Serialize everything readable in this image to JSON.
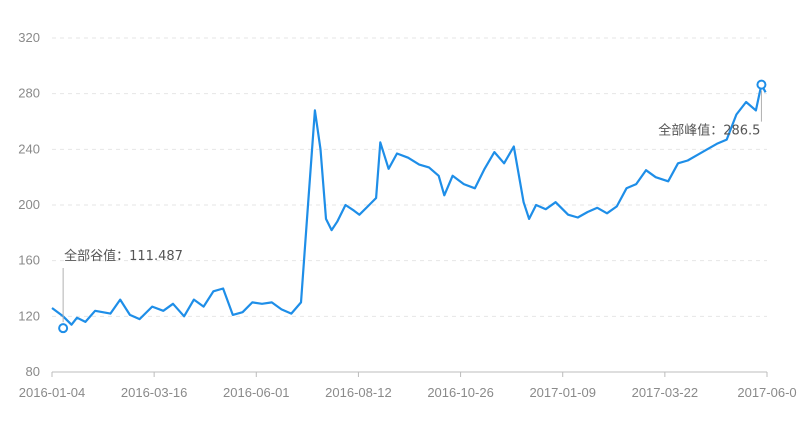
{
  "chart_data": {
    "type": "line",
    "title": "",
    "xlabel": "",
    "ylabel": "",
    "ylim": [
      80,
      320
    ],
    "yticks": [
      80,
      120,
      160,
      200,
      240,
      280,
      320
    ],
    "xticks": [
      "2016-01-04",
      "2016-03-16",
      "2016-06-01",
      "2016-08-12",
      "2016-10-26",
      "2017-01-09",
      "2017-03-22",
      "2017-06-0"
    ],
    "grid": "horizontal-dashed",
    "series": [
      {
        "name": "",
        "color": "#1e8ee8",
        "points": [
          [
            "2016-01-04",
            126
          ],
          [
            "2016-01-12",
            120
          ],
          [
            "2016-01-18",
            114
          ],
          [
            "2016-01-22",
            119
          ],
          [
            "2016-01-28",
            116
          ],
          [
            "2016-02-04",
            124
          ],
          [
            "2016-02-15",
            122
          ],
          [
            "2016-02-22",
            132
          ],
          [
            "2016-02-29",
            121
          ],
          [
            "2016-03-07",
            118
          ],
          [
            "2016-03-16",
            127
          ],
          [
            "2016-03-24",
            124
          ],
          [
            "2016-03-31",
            129
          ],
          [
            "2016-04-08",
            120
          ],
          [
            "2016-04-15",
            132
          ],
          [
            "2016-04-22",
            127
          ],
          [
            "2016-04-29",
            138
          ],
          [
            "2016-05-06",
            140
          ],
          [
            "2016-05-13",
            121
          ],
          [
            "2016-05-20",
            123
          ],
          [
            "2016-05-27",
            130
          ],
          [
            "2016-06-03",
            129
          ],
          [
            "2016-06-10",
            130
          ],
          [
            "2016-06-17",
            125
          ],
          [
            "2016-06-24",
            122
          ],
          [
            "2016-07-01",
            130
          ],
          [
            "2016-07-06",
            200
          ],
          [
            "2016-07-11",
            268
          ],
          [
            "2016-07-15",
            240
          ],
          [
            "2016-07-19",
            190
          ],
          [
            "2016-07-23",
            182
          ],
          [
            "2016-07-27",
            188
          ],
          [
            "2016-08-02",
            200
          ],
          [
            "2016-08-08",
            196
          ],
          [
            "2016-08-12",
            193
          ],
          [
            "2016-08-18",
            199
          ],
          [
            "2016-08-24",
            205
          ],
          [
            "2016-08-27",
            245
          ],
          [
            "2016-09-02",
            226
          ],
          [
            "2016-09-08",
            237
          ],
          [
            "2016-09-16",
            234
          ],
          [
            "2016-09-24",
            229
          ],
          [
            "2016-10-01",
            227
          ],
          [
            "2016-10-08",
            221
          ],
          [
            "2016-10-12",
            207
          ],
          [
            "2016-10-18",
            221
          ],
          [
            "2016-10-26",
            215
          ],
          [
            "2016-11-03",
            212
          ],
          [
            "2016-11-10",
            226
          ],
          [
            "2016-11-17",
            238
          ],
          [
            "2016-11-24",
            230
          ],
          [
            "2016-12-01",
            242
          ],
          [
            "2016-12-08",
            202
          ],
          [
            "2016-12-12",
            190
          ],
          [
            "2016-12-17",
            200
          ],
          [
            "2016-12-24",
            197
          ],
          [
            "2016-12-31",
            202
          ],
          [
            "2017-01-09",
            193
          ],
          [
            "2017-01-16",
            191
          ],
          [
            "2017-01-23",
            195
          ],
          [
            "2017-01-30",
            198
          ],
          [
            "2017-02-06",
            194
          ],
          [
            "2017-02-13",
            199
          ],
          [
            "2017-02-20",
            212
          ],
          [
            "2017-02-27",
            215
          ],
          [
            "2017-03-06",
            225
          ],
          [
            "2017-03-13",
            220
          ],
          [
            "2017-03-22",
            217
          ],
          [
            "2017-03-29",
            230
          ],
          [
            "2017-04-05",
            232
          ],
          [
            "2017-04-12",
            236
          ],
          [
            "2017-04-19",
            240
          ],
          [
            "2017-04-26",
            244
          ],
          [
            "2017-05-03",
            247
          ],
          [
            "2017-05-10",
            265
          ],
          [
            "2017-05-17",
            274
          ],
          [
            "2017-05-24",
            268
          ],
          [
            "2017-05-28",
            286.5
          ],
          [
            "2017-05-31",
            281
          ]
        ]
      }
    ],
    "annotations": [
      {
        "label": "全部谷值：111.487",
        "x": "2016-01-12",
        "y": 111.487
      },
      {
        "label": "全部峰值：286.5",
        "x": "2017-05-28",
        "y": 286.5
      }
    ]
  }
}
